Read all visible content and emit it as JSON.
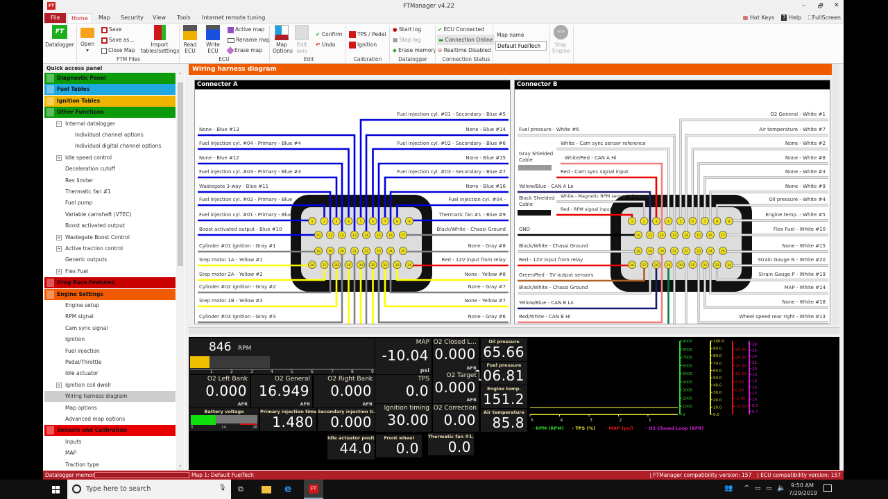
{
  "window": {
    "title": "FTManager v4.22",
    "min": "–",
    "max": "🗗",
    "close": "✕"
  },
  "menu": {
    "tabs": [
      "File",
      "Home",
      "Map",
      "Security",
      "View",
      "Tools",
      "Internet remote tuning"
    ],
    "active": "Home",
    "right": [
      "Hot Keys",
      "Help",
      "FullScreen"
    ]
  },
  "ribbon": {
    "datalogger": "Datalogger",
    "open": "Open",
    "save": "Save",
    "save_as": "Save as...",
    "close_map": "Close Map",
    "import": "Import tables/settings",
    "group_ftm": "FTM Files",
    "read_ecu": "Read ECU",
    "write_ecu": "Write ECU",
    "active_map": "Active map",
    "rename_map": "Rename map",
    "erase_map": "Erase map",
    "group_ecu": "ECU",
    "map_options": "Map Options",
    "edit_axis": "Edit axis",
    "confirm": "Confirm",
    "undo": "Undo",
    "group_edit": "Edit",
    "tps_pedal": "TPS / Pedal",
    "ignition": "Ignition",
    "group_calibration": "Calibration",
    "start_log": "Start log",
    "stop_log": "Stop log",
    "erase_memory": "Erase memory",
    "group_datalogger": "Datalogger",
    "ecu_connected": "ECU Connected",
    "connection_online": "Connection Online",
    "realtime_disabled": "Realtime Disabled",
    "group_connection": "Connection Status",
    "map_name_label": "Map name",
    "map_name_value": "Default FuelTech",
    "stop_icon_text": "STOP",
    "stop_engine": "Stop Engine"
  },
  "sidebar": {
    "title": "Quick access panel",
    "items": [
      {
        "t": "h",
        "label": "Diagnostic Panel",
        "color": "#0a9a0a"
      },
      {
        "t": "h",
        "label": "Fuel Tables",
        "color": "#20a8e0"
      },
      {
        "t": "h",
        "label": "Ignition Tables",
        "color": "#f0b400"
      },
      {
        "t": "h",
        "label": "Other Functions",
        "color": "#0a9a0a"
      },
      {
        "t": "i",
        "label": "Internal datalogger",
        "lvl": 1,
        "exp": "−"
      },
      {
        "t": "i",
        "label": "Individual channel options",
        "lvl": 2
      },
      {
        "t": "i",
        "label": "Individual digital channel options",
        "lvl": 2
      },
      {
        "t": "i",
        "label": "Idle speed control",
        "lvl": 1,
        "exp": "+"
      },
      {
        "t": "i",
        "label": "Deceleration cutoff",
        "lvl": 1
      },
      {
        "t": "i",
        "label": "Rev limiter",
        "lvl": 1
      },
      {
        "t": "i",
        "label": "Thermatic fan #1",
        "lvl": 1
      },
      {
        "t": "i",
        "label": "Fuel pump",
        "lvl": 1
      },
      {
        "t": "i",
        "label": "Variable camshaft (VTEC)",
        "lvl": 1
      },
      {
        "t": "i",
        "label": "Boost activated output",
        "lvl": 1
      },
      {
        "t": "i",
        "label": "Wastegate Boost Control",
        "lvl": 1,
        "exp": "+"
      },
      {
        "t": "i",
        "label": "Active traction control",
        "lvl": 1,
        "exp": "+"
      },
      {
        "t": "i",
        "label": "Generic outputs",
        "lvl": 1
      },
      {
        "t": "i",
        "label": "Flex Fuel",
        "lvl": 1,
        "exp": "+"
      },
      {
        "t": "h",
        "label": "Drag Race Features",
        "color": "#c80000"
      },
      {
        "t": "h",
        "label": "Engine Settings",
        "color": "#f05a00"
      },
      {
        "t": "i",
        "label": "Engine setup",
        "lvl": 1
      },
      {
        "t": "i",
        "label": "RPM signal",
        "lvl": 1
      },
      {
        "t": "i",
        "label": "Cam sync signal",
        "lvl": 1
      },
      {
        "t": "i",
        "label": "Ignition",
        "lvl": 1
      },
      {
        "t": "i",
        "label": "Fuel injection",
        "lvl": 1
      },
      {
        "t": "i",
        "label": "Pedal/Throttle",
        "lvl": 1
      },
      {
        "t": "i",
        "label": "Idle actuator",
        "lvl": 1
      },
      {
        "t": "i",
        "label": "Ignition coil dwell",
        "lvl": 1,
        "exp": "+"
      },
      {
        "t": "i",
        "label": "Wiring harness diagram",
        "lvl": 1,
        "selected": true
      },
      {
        "t": "i",
        "label": "Map options",
        "lvl": 1
      },
      {
        "t": "i",
        "label": "Advanced map options",
        "lvl": 1
      },
      {
        "t": "h",
        "label": "Sensors and Calibration",
        "color": "#e80000"
      },
      {
        "t": "i",
        "label": "Inputs",
        "lvl": 1
      },
      {
        "t": "i",
        "label": "MAP",
        "lvl": 1
      },
      {
        "t": "i",
        "label": "Traction type",
        "lvl": 1
      }
    ]
  },
  "panel": {
    "title": "Wiring harness diagram",
    "header_color": "#f05a00"
  },
  "connectors": [
    {
      "title": "Connector A",
      "wires": [
        {
          "label": "None - Blue #13",
          "side": "L",
          "y": 71,
          "pin": 13,
          "color": "#0000dd"
        },
        {
          "label": "Fuel injection cyl. #04 - Primary - Blue #4",
          "side": "L",
          "y": 91,
          "pin": 4,
          "color": "#0000dd"
        },
        {
          "label": "None - Blue #12",
          "side": "L",
          "y": 112,
          "pin": 12,
          "color": "#0000dd"
        },
        {
          "label": "Fuel injection cyl. #03 - Primary - Blue #3",
          "side": "L",
          "y": 132,
          "pin": 3,
          "color": "#0000dd"
        },
        {
          "label": "Wastegate 3-way - Blue #11",
          "side": "L",
          "y": 153,
          "pin": 11,
          "color": "#0000dd"
        },
        {
          "label": "Fuel injection cyl. #02 - Primary - Blue",
          "side": "L",
          "y": 172,
          "pin": 2,
          "color": "#0000dd"
        },
        {
          "label": "Fuel injection cyl. #01 - Primary - Blue",
          "side": "L",
          "y": 194,
          "pin": 1,
          "color": "#0000dd"
        },
        {
          "label": "Boost activated output - Blue #10",
          "side": "L",
          "y": 215,
          "pin": 10,
          "color": "#0000dd"
        },
        {
          "label": "Cylinder #01 ignition - Gray #1",
          "side": "L",
          "y": 239,
          "pin": 18,
          "color": "#808080"
        },
        {
          "label": "Step motor 1A - Yellow #1",
          "side": "L",
          "y": 259,
          "pin": 26,
          "color": "#ffff00"
        },
        {
          "label": "Step motor 2A - Yellow #2",
          "side": "L",
          "y": 280,
          "pin": 27,
          "color": "#ffff00"
        },
        {
          "label": "Cylinder #02 ignition - Gray #2",
          "side": "L",
          "y": 298,
          "pin": 19,
          "color": "#808080"
        },
        {
          "label": "Step motor 1B - Yellow #3",
          "side": "L",
          "y": 318,
          "pin": 28,
          "color": "#ffff00"
        },
        {
          "label": "Cylinder #03 ignition - Gray #3",
          "side": "L",
          "y": 341,
          "pin": 20,
          "color": "#808080"
        },
        {
          "label": "Fuel injection cyl. #01 - Secondary - Blue #5",
          "side": "R",
          "y": 49,
          "pin": 5,
          "color": "#0000dd"
        },
        {
          "label": "None - Blue #14",
          "side": "R",
          "y": 71,
          "pin": 14,
          "color": "#0000dd"
        },
        {
          "label": "Fuel injection cyl. #02 - Secondary - Blue #6",
          "side": "R",
          "y": 91,
          "pin": 6,
          "color": "#0000dd"
        },
        {
          "label": "None - Blue #15",
          "side": "R",
          "y": 112,
          "pin": 15,
          "color": "#0000dd"
        },
        {
          "label": "Fuel injection cyl. #03 - Secondary - Blue #7",
          "side": "R",
          "y": 132,
          "pin": 7,
          "color": "#0000dd"
        },
        {
          "label": "None - Blue #16",
          "side": "R",
          "y": 153,
          "pin": 16,
          "color": "#0000dd"
        },
        {
          "label": "Fuel injection cyl. #04 -",
          "side": "R",
          "y": 172,
          "pin": 8,
          "color": "#0000dd"
        },
        {
          "label": "Thermatic fan #1 - Blue #9",
          "side": "R",
          "y": 194,
          "pin": 9,
          "color": "#0000dd"
        },
        {
          "label": "Black/White - Chassi Ground",
          "side": "R",
          "y": 215,
          "pin": 17,
          "color": "#808080"
        },
        {
          "label": "None - Gray #8",
          "side": "R",
          "y": 239,
          "pin": 25,
          "color": "#808080"
        },
        {
          "label": "Red - 12V input from relay",
          "side": "R",
          "y": 259,
          "pin": 34,
          "color": "#ee0000"
        },
        {
          "label": "None - Yellow #8",
          "side": "R",
          "y": 280,
          "pin": 33,
          "color": "#ffff00"
        },
        {
          "label": "None - Gray #7",
          "side": "R",
          "y": 298,
          "pin": 24,
          "color": "#808080"
        },
        {
          "label": "None - Yellow #7",
          "side": "R",
          "y": 318,
          "pin": 32,
          "color": "#ffff00"
        },
        {
          "label": "None - Gray #6",
          "side": "R",
          "y": 341,
          "pin": 23,
          "color": "#808080"
        }
      ],
      "down": [
        {
          "pin": 21,
          "color": "#808080"
        },
        {
          "pin": 22,
          "color": "#808080"
        },
        {
          "pin": 29,
          "color": "#ffff00"
        },
        {
          "pin": 30,
          "color": "#ffff00"
        },
        {
          "pin": 31,
          "color": "#ffff00"
        }
      ]
    },
    {
      "title": "Connector B",
      "notes": [
        {
          "text": "Gray Shielded",
          "y": 106
        },
        {
          "text": "Cable",
          "y": 115
        },
        {
          "text": "Black Shielded",
          "y": 170
        },
        {
          "text": "Cable",
          "y": 179
        }
      ],
      "wires": [
        {
          "label": "Fuel pressure - White #6",
          "side": "L",
          "y": 71,
          "pin": 13,
          "color": "#ffffff"
        },
        {
          "label": "White - Cam sync sensor reference",
          "side": "L",
          "y": 91,
          "pin": 4,
          "color": "#ffffff",
          "x0": 60
        },
        {
          "label": "White/Red - CAN A Hi",
          "side": "L",
          "y": 112,
          "pin": 12,
          "color": "#f08080",
          "x0": 66
        },
        {
          "label": "Red - Cam sync signal input",
          "side": "L",
          "y": 132,
          "pin": 3,
          "color": "#ee0000",
          "x0": 60
        },
        {
          "label": "Yellow/Blue - CAN A Lo",
          "side": "L",
          "y": 153,
          "pin": 11,
          "color": "#1a1a70"
        },
        {
          "label": "White - Magnetic RPM sensor reference",
          "side": "L",
          "y": 167,
          "pin": 2,
          "color": "#ffffff",
          "x0": 60,
          "small": true
        },
        {
          "label": "Red - RPM signal input",
          "side": "L",
          "y": 186,
          "pin": 1,
          "color": "#ee0000",
          "x0": 60,
          "small": true
        },
        {
          "label": "GND",
          "side": "L",
          "y": 215,
          "pin": 10,
          "color": "#000000"
        },
        {
          "label": "Black/White - Chassi Ground",
          "side": "L",
          "y": 239,
          "pin": 18,
          "color": "#ffffff"
        },
        {
          "label": "Red - 12V input from relay",
          "side": "L",
          "y": 259,
          "pin": 26,
          "color": "#ee0000"
        },
        {
          "label": "Green/Red - 5V output sensors",
          "side": "L",
          "y": 281,
          "pin": 27,
          "color": "#b06020"
        },
        {
          "label": "Black/White - Chassi Ground",
          "side": "L",
          "y": 299,
          "pin": 19,
          "color": "#ffffff"
        },
        {
          "label": "Yellow/Blue - CAN B Lo",
          "side": "L",
          "y": 321,
          "pin": 28,
          "color": "#1a1a70"
        },
        {
          "label": "Red/White - CAN B Hi",
          "side": "L",
          "y": 341,
          "pin": 20,
          "color": "#f08080"
        },
        {
          "label": "O2 General - White #1",
          "side": "R",
          "y": 49,
          "pin": 5,
          "color": "#ffffff"
        },
        {
          "label": "Air temperature - White #7",
          "side": "R",
          "y": 71,
          "pin": 14,
          "color": "#ffffff"
        },
        {
          "label": "None - White #2",
          "side": "R",
          "y": 91,
          "pin": 6,
          "color": "#ffffff"
        },
        {
          "label": "None - White #8",
          "side": "R",
          "y": 112,
          "pin": 15,
          "color": "#ffffff"
        },
        {
          "label": "None - White #3",
          "side": "R",
          "y": 132,
          "pin": 7,
          "color": "#ffffff"
        },
        {
          "label": "None - White #9",
          "side": "R",
          "y": 153,
          "pin": 16,
          "color": "#ffffff"
        },
        {
          "label": "Oil pressure - White #4",
          "side": "R",
          "y": 172,
          "pin": 8,
          "color": "#ffffff"
        },
        {
          "label": "Engine temp. - White #5",
          "side": "R",
          "y": 194,
          "pin": 9,
          "color": "#ffffff"
        },
        {
          "label": "Flex Fuel - White #10",
          "side": "R",
          "y": 215,
          "pin": 17,
          "color": "#ffffff"
        },
        {
          "label": "None - White #15",
          "side": "R",
          "y": 239,
          "pin": 25,
          "color": "#ffffff"
        },
        {
          "label": "Strain Gauge N - White #20",
          "side": "R",
          "y": 259,
          "pin": 34,
          "color": "#ffffff"
        },
        {
          "label": "Strain Gauge P - White #19",
          "side": "R",
          "y": 280,
          "pin": 33,
          "color": "#ffffff"
        },
        {
          "label": "MAP - White #14",
          "side": "R",
          "y": 299,
          "pin": 24,
          "color": "#ffffff"
        },
        {
          "label": "None - White #18",
          "side": "R",
          "y": 320,
          "pin": 32,
          "color": "#ffffff"
        },
        {
          "label": "Wheel speed rear right - White #13",
          "side": "R",
          "y": 341,
          "pin": 23,
          "color": "#ffffff"
        }
      ],
      "down": [
        {
          "pin": 29,
          "color": "#008040"
        },
        {
          "pin": 21,
          "color": "#ffffff"
        },
        {
          "pin": 22,
          "color": "#ffffff"
        }
      ]
    }
  ],
  "dashboard": {
    "rpm": {
      "value": "846",
      "unit": "RPM",
      "ticks": [
        "1",
        "2",
        "3",
        "4",
        "5",
        "6",
        "7",
        "8",
        "9"
      ],
      "bar_value": 846,
      "bar_max": 9000
    },
    "map": {
      "label": "MAP",
      "value": "-10.04",
      "unit": "psi"
    },
    "o2_closed": {
      "label": "O2 Closed L...",
      "value": "0.000",
      "unit": "AFR"
    },
    "oil": {
      "label": "Oil pressure",
      "value": "65.66"
    },
    "fuel_p": {
      "label": "Fuel pressure",
      "value": "106.81"
    },
    "eng_temp": {
      "label": "Engine temp.",
      "value": "151.2"
    },
    "air_temp": {
      "label": "Air temperature",
      "value": "85.8"
    },
    "o2_left": {
      "label": "O2 Left Bank",
      "value": "0.000",
      "unit": "AFR"
    },
    "o2_general": {
      "label": "O2 General",
      "value": "16.949",
      "unit": "AFR"
    },
    "o2_right": {
      "label": "O2 Right Bank",
      "value": "0.000",
      "unit": "AFR"
    },
    "tps": {
      "label": "TPS",
      "value": "0.0"
    },
    "o2_target": {
      "label": "O2 Target",
      "value": "0.000",
      "unit": "AFR"
    },
    "battery": {
      "label": "Battery voltage",
      "min": "0",
      "mid": "14",
      "max": "28",
      "level_volts": 10.4
    },
    "prim_inj": {
      "label": "Primary injection time",
      "value": "1.480"
    },
    "sec_inj": {
      "label": "Secondary injection ti...",
      "value": "0.000"
    },
    "ign_timing": {
      "label": "Ignition timing",
      "value": "30.00"
    },
    "o2_corr": {
      "label": "O2 Correction",
      "value": "0.00"
    },
    "idle": {
      "label": "Idle actuator positi...",
      "value": "44.0"
    },
    "front_wheel": {
      "label": "Front wheel",
      "value": "0.0"
    },
    "fan": {
      "label": "Thermatic fan #1...",
      "value": "0.0"
    },
    "chart": {
      "type": "line",
      "x_ticks": [
        "5",
        "4",
        "3",
        "2",
        "1"
      ],
      "axes": [
        {
          "name": "RPM",
          "color": "#30d030",
          "min": 0,
          "max": 9000,
          "ticks": [
            "0",
            "1000",
            "2000",
            "3000",
            "4000",
            "5000",
            "6000",
            "7000",
            "8000",
            "9000"
          ]
        },
        {
          "name": "TPS",
          "color": "#e0e030",
          "min": 0,
          "max": 100,
          "ticks": [
            "0.0",
            "10.0",
            "20.0",
            "30.0",
            "40.0",
            "50.0",
            "60.0",
            "70.0",
            "80.0",
            "90.0",
            "100.0"
          ]
        },
        {
          "name": "MAP",
          "color": "#e01010",
          "min": -15,
          "max": 30,
          "ticks": [
            "-10.00",
            "-5.00",
            "0.00",
            "5.00",
            "10.00",
            "15.00",
            "20.00",
            "25.00"
          ]
        },
        {
          "name": "O2",
          "color": "#d020d0",
          "min": 5,
          "max": 29,
          "ticks": [
            "6.000",
            "8.000",
            "10.000",
            "12.000",
            "14.000",
            "16.000",
            "18.000",
            "20.000",
            "22.000",
            "24.000",
            "26.000",
            "28.000"
          ]
        }
      ],
      "series": [
        {
          "name": "RPM (RPM)",
          "color": "#30d030",
          "value": 846,
          "axis": 0
        },
        {
          "name": "TPS (%)",
          "color": "#e0e030",
          "value": 0,
          "axis": 1
        },
        {
          "name": "MAP (psi)",
          "color": "#e01010",
          "axis": 2
        },
        {
          "name": "O2 Closed Loop (AFR)",
          "color": "#d020d0",
          "axis": 3
        }
      ]
    }
  },
  "status": {
    "datalogger_memory": "Datalogger memory:",
    "map": "Map 1: Default FuelTech",
    "ftm_version": "| FTManager compatibility version: 157",
    "ecu_version": "| ECU compatibility version: 157"
  },
  "taskbar": {
    "search_placeholder": "Type here to search",
    "time": "9:50 AM",
    "date": "7/29/2019"
  }
}
